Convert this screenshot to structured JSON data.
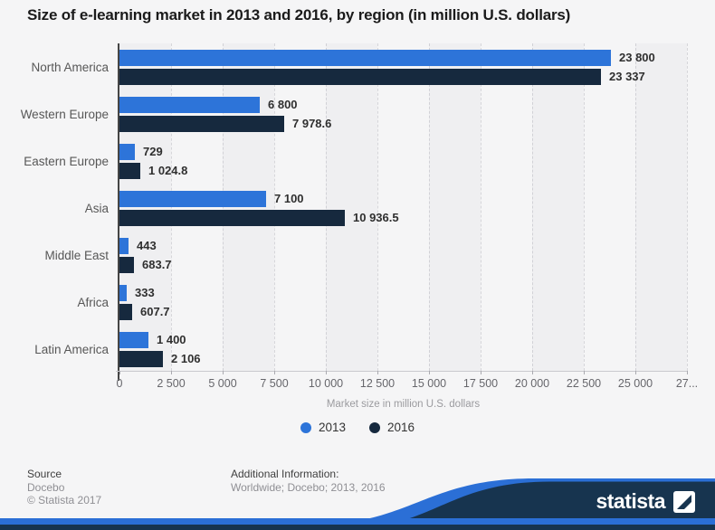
{
  "title": "Size of e-learning market in 2013 and 2016, by region (in million U.S. dollars)",
  "chart_data": {
    "type": "bar",
    "orientation": "horizontal",
    "categories": [
      "North America",
      "Western Europe",
      "Eastern Europe",
      "Asia",
      "Middle East",
      "Africa",
      "Latin America"
    ],
    "series": [
      {
        "name": "2013",
        "color": "#2d74d9",
        "values": [
          23800,
          6800,
          729,
          7100,
          443,
          333,
          1400
        ],
        "labels": [
          "23 800",
          "6 800",
          "729",
          "7 100",
          "443",
          "333",
          "1 400"
        ]
      },
      {
        "name": "2016",
        "color": "#16293e",
        "values": [
          23337,
          7978.6,
          1024.8,
          10936.5,
          683.7,
          607.7,
          2106
        ],
        "labels": [
          "23 337",
          "7 978.6",
          "1 024.8",
          "10 936.5",
          "683.7",
          "607.7",
          "2 106"
        ]
      }
    ],
    "xlabel": "Market size in million U.S. dollars",
    "xlim": [
      0,
      27500
    ],
    "xticks": {
      "values": [
        0,
        2500,
        5000,
        7500,
        10000,
        12500,
        15000,
        17500,
        20000,
        22500,
        25000,
        27500
      ],
      "labels": [
        "0",
        "2 500",
        "5 000",
        "7 500",
        "10 000",
        "12 500",
        "15 000",
        "17 500",
        "20 000",
        "22 500",
        "25 000",
        "27..."
      ]
    },
    "grid": "vertical-dashed",
    "legend_position": "bottom-center"
  },
  "footer": {
    "source_label": "Source",
    "source_lines": [
      "Docebo",
      "© Statista 2017"
    ],
    "additional_label": "Additional Information:",
    "additional_lines": [
      "Worldwide; Docebo; 2013, 2016"
    ],
    "brand": "statista"
  },
  "colors": {
    "page_bg": "#f5f5f6",
    "bar_2013": "#2d74d9",
    "bar_2016": "#16293e",
    "footer_blue": "#2b6fd6",
    "footer_navy": "#17344f"
  }
}
